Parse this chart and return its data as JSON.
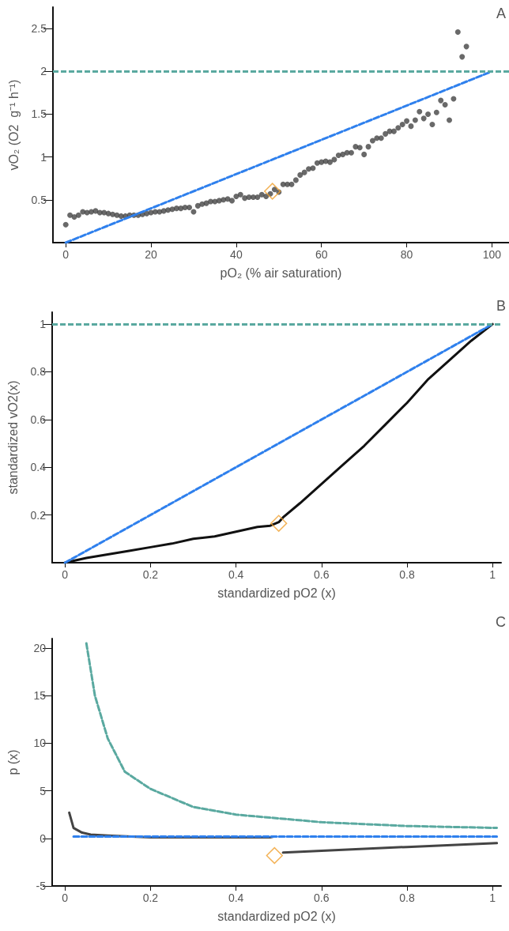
{
  "chart_data": [
    {
      "type": "scatter",
      "annotations": [
        "A"
      ],
      "xlabel": "pO₂ (% air saturation)",
      "ylabel": "vO₂ (O2  g⁻¹ h⁻¹)",
      "xlim": [
        -3,
        104
      ],
      "ylim": [
        0,
        2.75
      ],
      "xticks": [
        0,
        20,
        40,
        60,
        80,
        100
      ],
      "yticks": [
        0.5,
        1,
        1.5,
        2,
        2.5
      ],
      "grid": false,
      "ref_lines": [
        {
          "axis": "y",
          "value": 2,
          "color": "#5aa9a0",
          "line_style": "dashed"
        }
      ],
      "series": [
        {
          "type": "line",
          "color": "#2f80ed",
          "line_style": "dashed",
          "marker": "none",
          "x": [
            0,
            100
          ],
          "values": [
            0,
            2
          ]
        },
        {
          "color": "#444444",
          "marker": "circle",
          "x": [
            0,
            1,
            2,
            3,
            4,
            5,
            6,
            7,
            8,
            9,
            10,
            11,
            12,
            13,
            14,
            15,
            16,
            17,
            18,
            19,
            20,
            21,
            22,
            23,
            24,
            25,
            26,
            27,
            28,
            29,
            30,
            31,
            32,
            33,
            34,
            35,
            36,
            37,
            38,
            39,
            40,
            41,
            42,
            43,
            44,
            45,
            46,
            47,
            48,
            49,
            50,
            51,
            52,
            53,
            54,
            55,
            56,
            57,
            58,
            59,
            60,
            61,
            62,
            63,
            64,
            65,
            66,
            67,
            68,
            69,
            70,
            71,
            72,
            73,
            74,
            75,
            76,
            77,
            78,
            79,
            80,
            81,
            82,
            83,
            84,
            85,
            86,
            87,
            88,
            89,
            90,
            91,
            92,
            93,
            94
          ],
          "values": [
            0.21,
            0.32,
            0.3,
            0.32,
            0.36,
            0.35,
            0.36,
            0.37,
            0.35,
            0.35,
            0.34,
            0.33,
            0.32,
            0.31,
            0.31,
            0.32,
            0.32,
            0.32,
            0.33,
            0.34,
            0.35,
            0.36,
            0.36,
            0.37,
            0.38,
            0.39,
            0.4,
            0.4,
            0.41,
            0.41,
            0.36,
            0.43,
            0.45,
            0.46,
            0.48,
            0.48,
            0.49,
            0.5,
            0.51,
            0.49,
            0.54,
            0.56,
            0.52,
            0.53,
            0.53,
            0.53,
            0.56,
            0.54,
            0.57,
            0.62,
            0.59,
            0.68,
            0.68,
            0.68,
            0.73,
            0.79,
            0.82,
            0.86,
            0.87,
            0.93,
            0.94,
            0.95,
            0.94,
            0.97,
            1.02,
            1.03,
            1.05,
            1.05,
            1.12,
            1.11,
            1.03,
            1.12,
            1.19,
            1.22,
            1.22,
            1.27,
            1.3,
            1.3,
            1.34,
            1.38,
            1.42,
            1.36,
            1.43,
            1.53,
            1.45,
            1.5,
            1.38,
            1.52,
            1.66,
            1.61,
            1.43,
            1.68,
            2.46,
            2.17,
            2.29
          ]
        },
        {
          "type": "scatter",
          "color": "#f0a030",
          "marker": "diamond",
          "x": [
            48.5
          ],
          "values": [
            0.6
          ]
        }
      ]
    },
    {
      "type": "line",
      "annotations": [
        "B"
      ],
      "xlabel": "standardized pO2 (x)",
      "ylabel": "standardized vO2(x)",
      "xlim": [
        -0.03,
        1.02
      ],
      "ylim": [
        0,
        1.05
      ],
      "xticks": [
        0,
        0.2,
        0.4,
        0.6,
        0.8,
        1
      ],
      "yticks": [
        0.2,
        0.4,
        0.6,
        0.8,
        1
      ],
      "grid": false,
      "ref_lines": [
        {
          "axis": "y",
          "value": 1,
          "color": "#5aa9a0",
          "line_style": "dashed"
        }
      ],
      "series": [
        {
          "color": "#2f80ed",
          "line_style": "dashed",
          "marker": "none",
          "x": [
            0,
            1
          ],
          "values": [
            0,
            1
          ]
        },
        {
          "color": "#111111",
          "line_style": "solid",
          "marker": "none",
          "x": [
            0,
            0.05,
            0.1,
            0.15,
            0.2,
            0.25,
            0.3,
            0.35,
            0.4,
            0.45,
            0.48,
            0.5,
            0.51,
            0.55,
            0.6,
            0.65,
            0.7,
            0.75,
            0.8,
            0.85,
            0.9,
            0.95,
            1
          ],
          "values": [
            0,
            0.02,
            0.035,
            0.05,
            0.065,
            0.08,
            0.1,
            0.11,
            0.13,
            0.15,
            0.155,
            0.17,
            0.19,
            0.25,
            0.33,
            0.41,
            0.49,
            0.58,
            0.67,
            0.77,
            0.85,
            0.93,
            1
          ]
        },
        {
          "type": "scatter",
          "color": "#f0a030",
          "marker": "diamond",
          "x": [
            0.5
          ],
          "values": [
            0.165
          ]
        }
      ]
    },
    {
      "type": "line",
      "annotations": [
        "C"
      ],
      "xlabel": "standardized pO2 (x)",
      "ylabel": "p (x)",
      "xlim": [
        -0.03,
        1.02
      ],
      "ylim": [
        -5,
        21
      ],
      "xticks": [
        0,
        0.2,
        0.4,
        0.6,
        0.8,
        1
      ],
      "yticks": [
        -5,
        0,
        5,
        10,
        15,
        20
      ],
      "grid": false,
      "series": [
        {
          "color": "#5aa9a0",
          "line_style": "dashed",
          "marker": "none",
          "x": [
            0.05,
            0.07,
            0.1,
            0.14,
            0.2,
            0.3,
            0.4,
            0.5,
            0.6,
            0.7,
            0.8,
            0.9,
            1.01
          ],
          "values": [
            20.5,
            15,
            10.5,
            7,
            5.2,
            3.3,
            2.5,
            2.1,
            1.7,
            1.5,
            1.3,
            1.2,
            1.1
          ]
        },
        {
          "color": "#2f80ed",
          "line_style": "dashed",
          "marker": "none",
          "x": [
            0.02,
            1.01
          ],
          "values": [
            0.2,
            0.2
          ]
        },
        {
          "color": "#444444",
          "line_style": "solid",
          "marker": "none",
          "x": [
            0.01,
            0.02,
            0.04,
            0.06,
            0.1,
            0.2,
            0.3,
            0.4,
            0.48,
            0.49,
            0.5,
            0.51,
            0.6,
            0.8,
            1.01
          ],
          "values": [
            2.7,
            1.1,
            0.6,
            0.4,
            0.3,
            0.1,
            0.1,
            0.1,
            0.1,
            0.2,
            null,
            -1.5,
            -1.3,
            -0.9,
            -0.5
          ]
        },
        {
          "type": "scatter",
          "color": "#f0a030",
          "marker": "diamond",
          "x": [
            0.49
          ],
          "values": [
            -1.8
          ]
        }
      ]
    }
  ]
}
